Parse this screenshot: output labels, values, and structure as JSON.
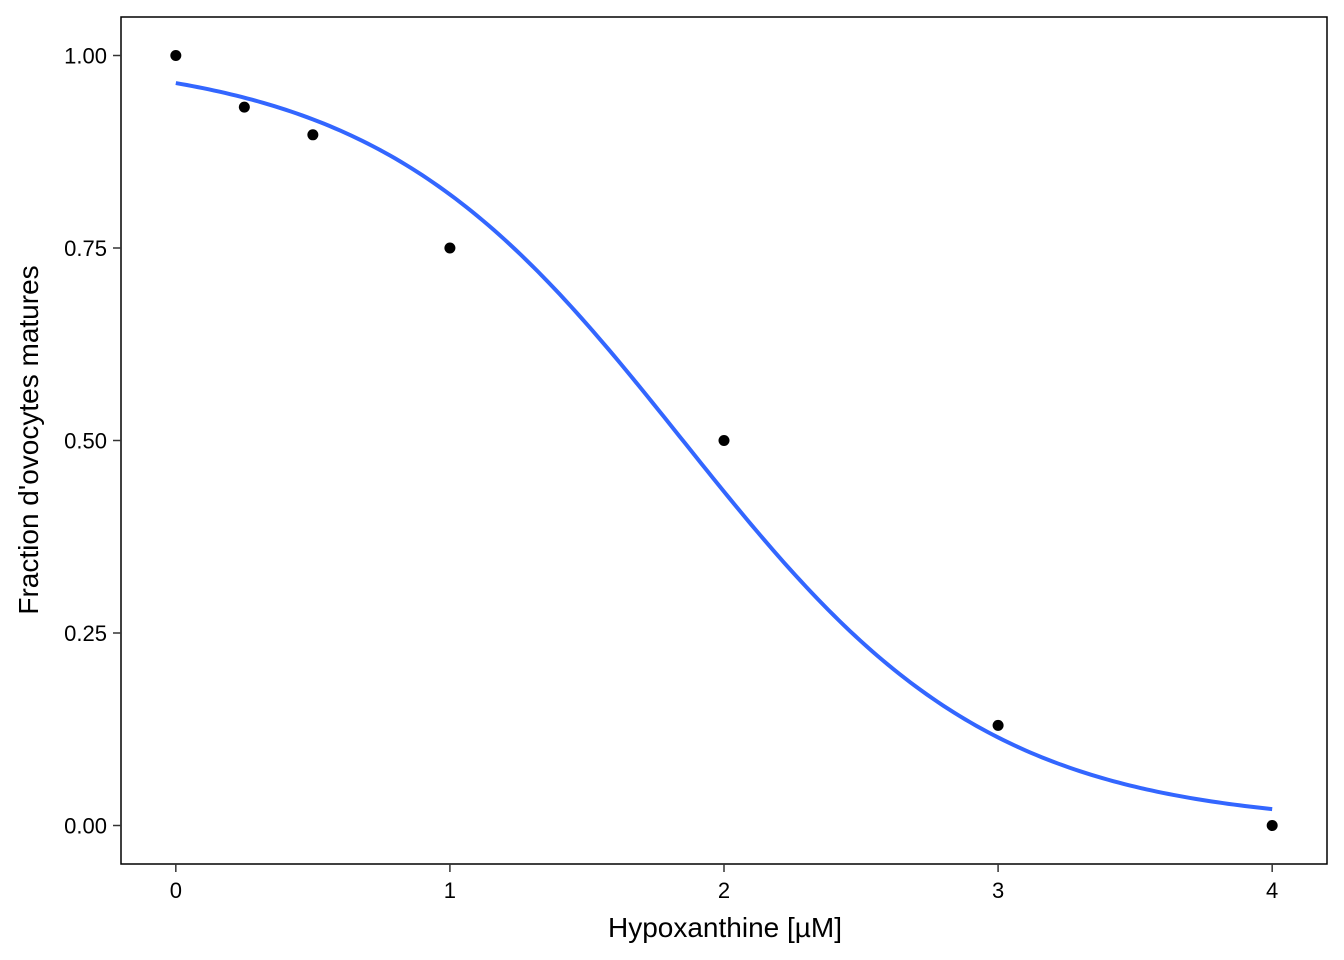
{
  "chart_data": {
    "type": "scatter",
    "title": "",
    "xlabel": "Hypoxanthine [µM]",
    "ylabel": "Fraction d'ovocytes matures",
    "xlim": [
      -0.2,
      4.2
    ],
    "ylim": [
      -0.05,
      1.05
    ],
    "x_ticks": [
      0,
      1,
      2,
      3,
      4
    ],
    "x_tick_labels": [
      "0",
      "1",
      "2",
      "3",
      "4"
    ],
    "y_ticks": [
      0,
      0.25,
      0.5,
      0.75,
      1
    ],
    "y_tick_labels": [
      "0.00",
      "0.25",
      "0.50",
      "0.75",
      "1.00"
    ],
    "grid": false,
    "legend": "none",
    "series": [
      {
        "kind": "points",
        "color": "#000000",
        "x": [
          0,
          0.25,
          0.5,
          1,
          2,
          3,
          4
        ],
        "y": [
          1.0,
          0.933,
          0.897,
          0.75,
          0.5,
          0.13,
          0.0
        ]
      },
      {
        "kind": "fitted-curve",
        "color": "#3366FF",
        "x_range": [
          0,
          4
        ],
        "model": "logistic",
        "top": 1.0,
        "ec50": 1.85,
        "slope": 1.78
      }
    ]
  }
}
